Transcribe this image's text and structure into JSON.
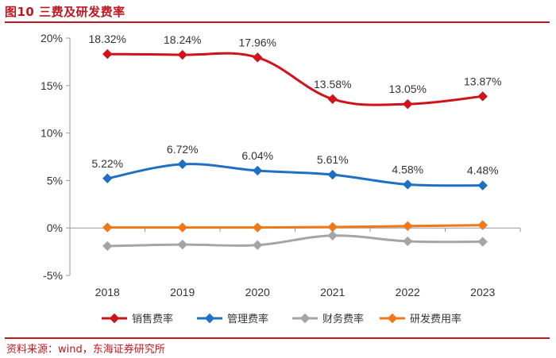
{
  "header": {
    "title": "图10 三费及研发费率"
  },
  "footer": {
    "source": "资料来源：wind，东海证券研究所"
  },
  "chart_data": {
    "type": "line",
    "title": "三费及研发费率",
    "categories": [
      "2018",
      "2019",
      "2020",
      "2021",
      "2022",
      "2023"
    ],
    "ylim": [
      -5,
      20
    ],
    "yticks": [
      -5,
      0,
      5,
      10,
      15,
      20
    ],
    "ytick_labels": [
      "-5%",
      "0%",
      "5%",
      "10%",
      "15%",
      "20%"
    ],
    "grid": false,
    "legend_position": "bottom",
    "series": [
      {
        "name": "销售费率",
        "color": "#d0121b",
        "values": [
          18.32,
          18.24,
          17.96,
          13.58,
          13.05,
          13.87
        ],
        "labels": [
          "18.32%",
          "18.24%",
          "17.96%",
          "13.58%",
          "13.05%",
          "13.87%"
        ]
      },
      {
        "name": "管理费率",
        "color": "#1f6fc5",
        "values": [
          5.22,
          6.72,
          6.04,
          5.61,
          4.58,
          4.48
        ],
        "labels": [
          "5.22%",
          "6.72%",
          "6.04%",
          "5.61%",
          "4.58%",
          "4.48%"
        ]
      },
      {
        "name": "财务费率",
        "color": "#a5a5a5",
        "values": [
          -1.9,
          -1.75,
          -1.8,
          -0.8,
          -1.4,
          -1.45
        ],
        "labels": []
      },
      {
        "name": "研发费用率",
        "color": "#f07818",
        "values": [
          0.05,
          0.05,
          0.05,
          0.1,
          0.2,
          0.3
        ],
        "labels": []
      }
    ]
  }
}
